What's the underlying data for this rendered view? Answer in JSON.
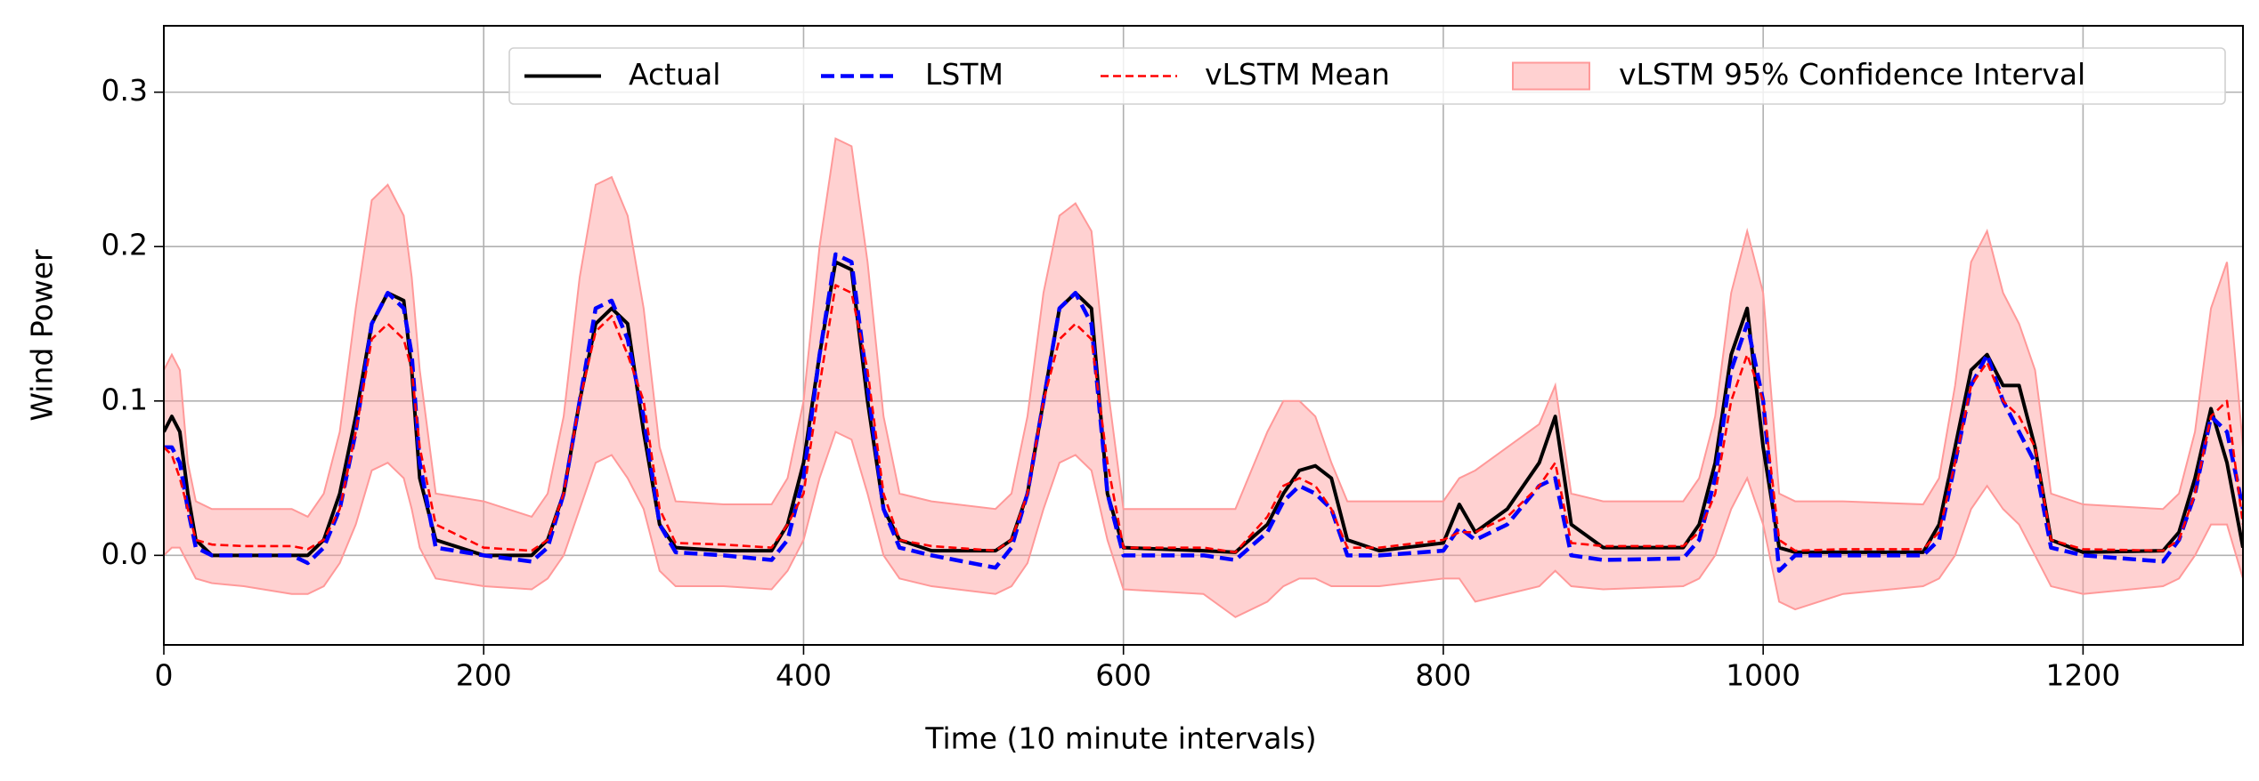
{
  "chart_data": {
    "type": "line",
    "xlabel": "Time (10 minute intervals)",
    "ylabel": "Wind Power",
    "xlim": [
      0,
      1300
    ],
    "ylim": [
      -0.058,
      0.343
    ],
    "xticks": [
      0,
      200,
      400,
      600,
      800,
      1000,
      1200
    ],
    "yticks": [
      {
        "value": 0,
        "label": "0.0"
      },
      0.1,
      0.2,
      0.3
    ],
    "grid": true,
    "legend": "upper right",
    "x": [
      0,
      5,
      10,
      15,
      20,
      30,
      50,
      80,
      90,
      100,
      110,
      120,
      130,
      140,
      150,
      155,
      160,
      170,
      200,
      230,
      240,
      250,
      260,
      270,
      280,
      290,
      300,
      310,
      320,
      350,
      380,
      390,
      400,
      410,
      420,
      430,
      440,
      450,
      460,
      480,
      520,
      530,
      540,
      550,
      560,
      570,
      580,
      590,
      600,
      650,
      670,
      690,
      700,
      710,
      720,
      730,
      740,
      760,
      800,
      810,
      820,
      840,
      860,
      870,
      880,
      900,
      950,
      960,
      970,
      980,
      990,
      1000,
      1010,
      1020,
      1050,
      1100,
      1110,
      1120,
      1130,
      1140,
      1150,
      1160,
      1170,
      1180,
      1200,
      1250,
      1260,
      1270,
      1280,
      1290,
      1300
    ],
    "series": [
      {
        "name": "Actual",
        "color": "#000000",
        "dash": "solid",
        "values": [
          0.08,
          0.09,
          0.08,
          0.04,
          0.01,
          0.0,
          0.0,
          0.0,
          0.0,
          0.01,
          0.04,
          0.09,
          0.15,
          0.17,
          0.165,
          0.12,
          0.05,
          0.01,
          0.0,
          0.0,
          0.01,
          0.04,
          0.1,
          0.15,
          0.16,
          0.15,
          0.08,
          0.02,
          0.005,
          0.003,
          0.003,
          0.02,
          0.06,
          0.13,
          0.19,
          0.185,
          0.1,
          0.03,
          0.01,
          0.003,
          0.003,
          0.01,
          0.04,
          0.1,
          0.16,
          0.17,
          0.16,
          0.04,
          0.005,
          0.003,
          0.002,
          0.02,
          0.04,
          0.055,
          0.058,
          0.05,
          0.01,
          0.003,
          0.008,
          0.033,
          0.015,
          0.03,
          0.06,
          0.09,
          0.02,
          0.005,
          0.005,
          0.02,
          0.06,
          0.13,
          0.16,
          0.07,
          0.005,
          0.002,
          0.002,
          0.002,
          0.02,
          0.07,
          0.12,
          0.13,
          0.11,
          0.11,
          0.07,
          0.01,
          0.002,
          0.003,
          0.015,
          0.05,
          0.095,
          0.06,
          0.005
        ]
      },
      {
        "name": "LSTM",
        "color": "#0000ff",
        "dash": "long",
        "values": [
          0.07,
          0.07,
          0.06,
          0.03,
          0.005,
          0.0,
          0.0,
          0.0,
          -0.005,
          0.005,
          0.03,
          0.08,
          0.15,
          0.17,
          0.16,
          0.13,
          0.06,
          0.005,
          0.0,
          -0.004,
          0.005,
          0.04,
          0.1,
          0.16,
          0.165,
          0.14,
          0.09,
          0.02,
          0.002,
          0.0,
          -0.003,
          0.01,
          0.05,
          0.13,
          0.195,
          0.19,
          0.11,
          0.03,
          0.005,
          0.0,
          -0.008,
          0.005,
          0.04,
          0.1,
          0.16,
          0.17,
          0.15,
          0.04,
          0.0,
          0.0,
          -0.003,
          0.015,
          0.035,
          0.045,
          0.04,
          0.03,
          0.0,
          0.0,
          0.003,
          0.018,
          0.01,
          0.02,
          0.045,
          0.05,
          0.0,
          -0.003,
          -0.002,
          0.01,
          0.05,
          0.12,
          0.15,
          0.1,
          -0.01,
          0.0,
          0.0,
          0.0,
          0.01,
          0.06,
          0.11,
          0.13,
          0.1,
          0.08,
          0.06,
          0.005,
          0.0,
          -0.004,
          0.01,
          0.04,
          0.09,
          0.08,
          0.03
        ]
      },
      {
        "name": "vLSTM Mean",
        "color": "#ff0000",
        "dash": "short",
        "values": [
          0.07,
          0.065,
          0.05,
          0.03,
          0.01,
          0.007,
          0.006,
          0.006,
          0.004,
          0.01,
          0.03,
          0.08,
          0.14,
          0.15,
          0.14,
          0.12,
          0.07,
          0.02,
          0.005,
          0.003,
          0.01,
          0.04,
          0.1,
          0.145,
          0.155,
          0.13,
          0.1,
          0.03,
          0.008,
          0.007,
          0.005,
          0.02,
          0.04,
          0.11,
          0.175,
          0.17,
          0.12,
          0.04,
          0.01,
          0.006,
          0.003,
          0.01,
          0.04,
          0.1,
          0.14,
          0.15,
          0.14,
          0.06,
          0.005,
          0.005,
          0.002,
          0.025,
          0.045,
          0.05,
          0.045,
          0.03,
          0.005,
          0.005,
          0.01,
          0.015,
          0.015,
          0.025,
          0.045,
          0.06,
          0.008,
          0.006,
          0.006,
          0.015,
          0.04,
          0.1,
          0.13,
          0.1,
          0.01,
          0.003,
          0.004,
          0.004,
          0.015,
          0.06,
          0.11,
          0.125,
          0.1,
          0.09,
          0.07,
          0.01,
          0.004,
          0.003,
          0.01,
          0.04,
          0.09,
          0.1,
          0.02
        ]
      }
    ],
    "band": {
      "name": "vLSTM 95% Confidence Interval",
      "color": "#ff9999",
      "upper": [
        0.12,
        0.13,
        0.12,
        0.06,
        0.035,
        0.03,
        0.03,
        0.03,
        0.025,
        0.04,
        0.08,
        0.16,
        0.23,
        0.24,
        0.22,
        0.18,
        0.12,
        0.04,
        0.035,
        0.025,
        0.04,
        0.09,
        0.18,
        0.24,
        0.245,
        0.22,
        0.16,
        0.07,
        0.035,
        0.033,
        0.033,
        0.05,
        0.1,
        0.2,
        0.27,
        0.265,
        0.19,
        0.09,
        0.04,
        0.035,
        0.03,
        0.04,
        0.09,
        0.17,
        0.22,
        0.228,
        0.21,
        0.11,
        0.03,
        0.03,
        0.03,
        0.08,
        0.1,
        0.1,
        0.09,
        0.06,
        0.035,
        0.035,
        0.035,
        0.05,
        0.055,
        0.07,
        0.085,
        0.11,
        0.04,
        0.035,
        0.035,
        0.05,
        0.09,
        0.17,
        0.21,
        0.17,
        0.04,
        0.035,
        0.035,
        0.033,
        0.05,
        0.11,
        0.19,
        0.21,
        0.17,
        0.15,
        0.12,
        0.04,
        0.033,
        0.03,
        0.04,
        0.08,
        0.16,
        0.19,
        0.07
      ],
      "lower": [
        0.0,
        0.005,
        0.005,
        -0.005,
        -0.015,
        -0.018,
        -0.02,
        -0.025,
        -0.025,
        -0.02,
        -0.005,
        0.02,
        0.055,
        0.06,
        0.05,
        0.03,
        0.005,
        -0.015,
        -0.02,
        -0.022,
        -0.015,
        0.0,
        0.03,
        0.06,
        0.065,
        0.05,
        0.03,
        -0.01,
        -0.02,
        -0.02,
        -0.022,
        -0.01,
        0.01,
        0.05,
        0.08,
        0.075,
        0.04,
        0.0,
        -0.015,
        -0.02,
        -0.025,
        -0.02,
        -0.005,
        0.03,
        0.06,
        0.065,
        0.055,
        0.01,
        -0.022,
        -0.025,
        -0.04,
        -0.03,
        -0.02,
        -0.015,
        -0.015,
        -0.02,
        -0.02,
        -0.02,
        -0.015,
        -0.015,
        -0.03,
        -0.025,
        -0.02,
        -0.01,
        -0.02,
        -0.022,
        -0.02,
        -0.015,
        0.0,
        0.03,
        0.05,
        0.02,
        -0.03,
        -0.035,
        -0.025,
        -0.02,
        -0.015,
        0.0,
        0.03,
        0.045,
        0.03,
        0.02,
        0.0,
        -0.02,
        -0.025,
        -0.02,
        -0.015,
        0.0,
        0.02,
        0.02,
        -0.015
      ]
    }
  }
}
